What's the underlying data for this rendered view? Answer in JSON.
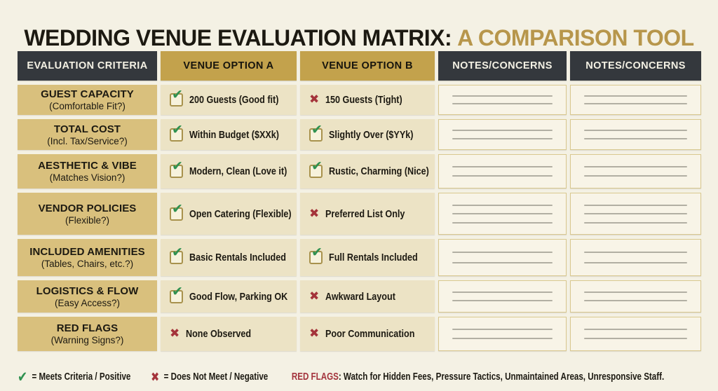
{
  "colors": {
    "accent_gold": "#c3a24c",
    "title_gold": "#b7964b",
    "header_dark": "#34383d",
    "criteria_tan": "#d9c07d",
    "venue_cream": "#ece3c5",
    "notes_cream": "#f8f4e7",
    "positive_green": "#2f9150",
    "negative_red": "#a4333a"
  },
  "icons": {
    "check": "✔",
    "x": "✖"
  },
  "title": {
    "main": "WEDDING VENUE EVALUATION MATRIX:",
    "accent": "A COMPARISON TOOL"
  },
  "table": {
    "headers": [
      "EVALUATION CRITERIA",
      "VENUE OPTION A",
      "VENUE OPTION B",
      "NOTES/CONCERNS",
      "NOTES/CONCERNS"
    ],
    "rows": [
      {
        "criteria": "GUEST CAPACITY",
        "criteria_sub": "(Comfortable Fit?)",
        "venue_a": {
          "status": "check",
          "text": "200 Guests (Good fit)"
        },
        "venue_b": {
          "status": "x",
          "text": "150 Guests (Tight)"
        },
        "note_lines": 2
      },
      {
        "criteria": "TOTAL COST",
        "criteria_sub": "(Incl. Tax/Service?)",
        "venue_a": {
          "status": "check",
          "text": "Within Budget ($XXk)"
        },
        "venue_b": {
          "status": "check",
          "text": "Slightly Over ($YYk)"
        },
        "note_lines": 2
      },
      {
        "criteria": "AESTHETIC & VIBE",
        "criteria_sub": "(Matches Vision?)",
        "venue_a": {
          "status": "check",
          "text": "Modern, Clean (Love it)"
        },
        "venue_b": {
          "status": "check",
          "text": "Rustic, Charming (Nice)"
        },
        "note_lines": 2
      },
      {
        "criteria": "VENDOR POLICIES",
        "criteria_sub": "(Flexible?)",
        "venue_a": {
          "status": "check",
          "text": "Open Catering (Flexible)"
        },
        "venue_b": {
          "status": "x",
          "text": "Preferred List Only"
        },
        "note_lines": 3
      },
      {
        "criteria": "INCLUDED AMENITIES",
        "criteria_sub": "(Tables, Chairs, etc.?)",
        "venue_a": {
          "status": "check",
          "text": "Basic Rentals Included"
        },
        "venue_b": {
          "status": "check",
          "text": "Full Rentals Included"
        },
        "note_lines": 2
      },
      {
        "criteria": "LOGISTICS & FLOW",
        "criteria_sub": "(Easy Access?)",
        "venue_a": {
          "status": "check",
          "text": "Good Flow, Parking OK"
        },
        "venue_b": {
          "status": "x",
          "text": "Awkward Layout"
        },
        "note_lines": 2
      },
      {
        "criteria": "RED FLAGS",
        "criteria_sub": "(Warning Signs?)",
        "venue_a": {
          "status": "x",
          "text": "None Observed"
        },
        "venue_b": {
          "status": "x",
          "text": "Poor Communication"
        },
        "note_lines": 2
      }
    ]
  },
  "legend": {
    "positive": "= Meets Criteria / Positive",
    "negative": "= Does Not Meet / Negative",
    "red_flags_label": "RED FLAGS",
    "red_flags_text": ": Watch for Hidden Fees, Pressure Tactics, Unmaintained Areas, Unresponsive Staff."
  }
}
